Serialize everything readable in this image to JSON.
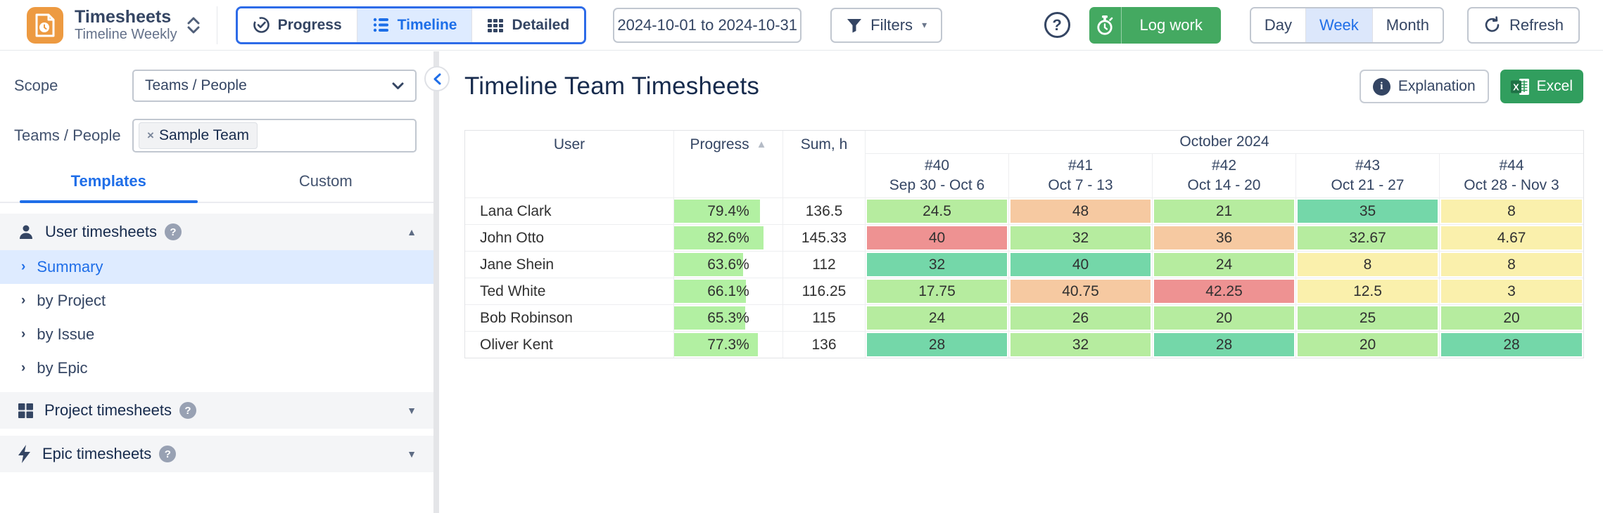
{
  "app": {
    "title": "Timesheets",
    "subtitle": "Timeline Weekly"
  },
  "topbar": {
    "views": [
      {
        "label": "Progress",
        "active": false
      },
      {
        "label": "Timeline",
        "active": true
      },
      {
        "label": "Detailed",
        "active": false
      }
    ],
    "date_range": "2024-10-01 to 2024-10-31",
    "filters_label": "Filters",
    "help_symbol": "?",
    "log_work_label": "Log work",
    "periods": [
      {
        "label": "Day",
        "active": false
      },
      {
        "label": "Week",
        "active": true
      },
      {
        "label": "Month",
        "active": false
      }
    ],
    "refresh_label": "Refresh"
  },
  "sidebar": {
    "scope_label": "Scope",
    "scope_value": "Teams / People",
    "teams_label": "Teams / People",
    "team_tag": "Sample Team",
    "tag_remove_symbol": "×",
    "tabs": [
      {
        "label": "Templates",
        "active": true
      },
      {
        "label": "Custom",
        "active": false
      }
    ],
    "sections": [
      {
        "label": "User timesheets",
        "icon": "user-icon",
        "expanded": true,
        "items": [
          {
            "label": "Summary",
            "selected": true
          },
          {
            "label": "by Project",
            "selected": false
          },
          {
            "label": "by Issue",
            "selected": false
          },
          {
            "label": "by Epic",
            "selected": false
          }
        ]
      },
      {
        "label": "Project timesheets",
        "icon": "grid-icon",
        "expanded": false
      },
      {
        "label": "Epic timesheets",
        "icon": "bolt-icon",
        "expanded": false
      }
    ],
    "help_badge_symbol": "?"
  },
  "main": {
    "title": "Timeline Team Timesheets",
    "explanation_label": "Explanation",
    "excel_label": "Excel",
    "table": {
      "columns": {
        "user": "User",
        "progress": "Progress",
        "sum": "Sum, h",
        "month": "October 2024"
      },
      "weeks": [
        {
          "num": "#40",
          "range": "Sep 30 - Oct 6"
        },
        {
          "num": "#41",
          "range": "Oct 7 - 13"
        },
        {
          "num": "#42",
          "range": "Oct 14 - 20"
        },
        {
          "num": "#43",
          "range": "Oct 21 - 27"
        },
        {
          "num": "#44",
          "range": "Oct 28 - Nov 3"
        }
      ],
      "rows": [
        {
          "user": "Lana Clark",
          "progress": "79.4%",
          "progress_pct": 79.4,
          "sum": "136.5",
          "cells": [
            {
              "v": "24.5",
              "c": "green"
            },
            {
              "v": "48",
              "c": "orange"
            },
            {
              "v": "21",
              "c": "green"
            },
            {
              "v": "35",
              "c": "teal"
            },
            {
              "v": "8",
              "c": "yellow"
            }
          ]
        },
        {
          "user": "John Otto",
          "progress": "82.6%",
          "progress_pct": 82.6,
          "sum": "145.33",
          "cells": [
            {
              "v": "40",
              "c": "red"
            },
            {
              "v": "32",
              "c": "green"
            },
            {
              "v": "36",
              "c": "orange"
            },
            {
              "v": "32.67",
              "c": "green"
            },
            {
              "v": "4.67",
              "c": "yellow"
            }
          ]
        },
        {
          "user": "Jane Shein",
          "progress": "63.6%",
          "progress_pct": 63.6,
          "sum": "112",
          "cells": [
            {
              "v": "32",
              "c": "teal"
            },
            {
              "v": "40",
              "c": "teal"
            },
            {
              "v": "24",
              "c": "green"
            },
            {
              "v": "8",
              "c": "yellow"
            },
            {
              "v": "8",
              "c": "yellow"
            }
          ]
        },
        {
          "user": "Ted White",
          "progress": "66.1%",
          "progress_pct": 66.1,
          "sum": "116.25",
          "cells": [
            {
              "v": "17.75",
              "c": "green"
            },
            {
              "v": "40.75",
              "c": "orange"
            },
            {
              "v": "42.25",
              "c": "red"
            },
            {
              "v": "12.5",
              "c": "yellow"
            },
            {
              "v": "3",
              "c": "yellow"
            }
          ]
        },
        {
          "user": "Bob Robinson",
          "progress": "65.3%",
          "progress_pct": 65.3,
          "sum": "115",
          "cells": [
            {
              "v": "24",
              "c": "green"
            },
            {
              "v": "26",
              "c": "green"
            },
            {
              "v": "20",
              "c": "green"
            },
            {
              "v": "25",
              "c": "green"
            },
            {
              "v": "20",
              "c": "green"
            }
          ]
        },
        {
          "user": "Oliver Kent",
          "progress": "77.3%",
          "progress_pct": 77.3,
          "sum": "136",
          "cells": [
            {
              "v": "28",
              "c": "teal"
            },
            {
              "v": "32",
              "c": "green"
            },
            {
              "v": "28",
              "c": "teal"
            },
            {
              "v": "20",
              "c": "green"
            },
            {
              "v": "28",
              "c": "teal"
            }
          ]
        }
      ]
    }
  },
  "colors": {
    "green": "#B6EC9F",
    "teal": "#74D7A9",
    "orange": "#F6C9A1",
    "red": "#EE9292",
    "yellow": "#FAF0AC",
    "progress_bar": "#B2F0A2",
    "accent_blue": "#1F6EE8",
    "brand_orange": "#ED9A41",
    "button_green": "#44A961",
    "excel_green": "#319E5E"
  }
}
